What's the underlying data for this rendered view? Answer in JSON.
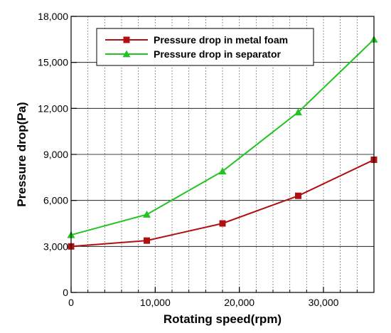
{
  "chart_data": {
    "type": "line",
    "xlabel": "Rotating speed(rpm)",
    "ylabel": "Pressure drop(Pa)",
    "xlim": [
      0,
      36000
    ],
    "ylim": [
      0,
      18000
    ],
    "x_ticks": [
      {
        "value": 0,
        "label": "0"
      },
      {
        "value": 10000,
        "label": "10,000"
      },
      {
        "value": 20000,
        "label": "20,000"
      },
      {
        "value": 30000,
        "label": "30,000"
      }
    ],
    "y_ticks": [
      {
        "value": 0,
        "label": "0"
      },
      {
        "value": 3000,
        "label": "3,000"
      },
      {
        "value": 6000,
        "label": "6,000"
      },
      {
        "value": 9000,
        "label": "9,000"
      },
      {
        "value": 12000,
        "label": "12,000"
      },
      {
        "value": 15000,
        "label": "15,000"
      },
      {
        "value": 18000,
        "label": "18,000"
      }
    ],
    "x_minor_step": 2000,
    "grid": "dotted vertical and solid horizontal",
    "legend_position": "top",
    "series": [
      {
        "name": "Pressure drop in metal foam",
        "color": "#b01010",
        "marker": "square",
        "x": [
          0,
          9000,
          18000,
          27000,
          36000
        ],
        "y": [
          3000,
          3380,
          4500,
          6300,
          8650
        ]
      },
      {
        "name": "Pressure drop in separator",
        "color": "#22c422",
        "marker": "triangle",
        "x": [
          0,
          9000,
          18000,
          27000,
          36000
        ],
        "y": [
          3750,
          5080,
          7900,
          11750,
          16500
        ]
      }
    ]
  }
}
